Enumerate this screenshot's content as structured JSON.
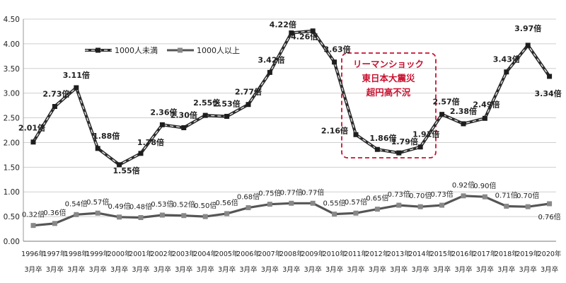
{
  "chart_data": {
    "type": "line",
    "title": "",
    "xlabel": "",
    "ylabel": "",
    "ylim": [
      0,
      4.5
    ],
    "yticks": [
      "0.00",
      "0.50",
      "1.00",
      "1.50",
      "2.00",
      "2.50",
      "3.00",
      "3.50",
      "4.00",
      "4.50"
    ],
    "grid": true,
    "legend_position": "top-left",
    "categories_year": [
      "1996年",
      "1997年",
      "1998年",
      "1999年",
      "2000年",
      "2001年",
      "2002年",
      "2003年",
      "2004年",
      "2005年",
      "2006年",
      "2007年",
      "2008年",
      "2009年",
      "2010年",
      "2011年",
      "2012年",
      "2013年",
      "2014年",
      "2015年",
      "2016年",
      "2017年",
      "2018年",
      "2019年",
      "2020年"
    ],
    "categories_month": "3月卒",
    "series": [
      {
        "name": "1000人未満",
        "style": "dashed-thick",
        "color": "#2b2b2b",
        "values": [
          2.01,
          2.73,
          3.11,
          1.88,
          1.55,
          1.78,
          2.36,
          2.3,
          2.55,
          2.53,
          2.77,
          3.42,
          4.22,
          4.26,
          3.63,
          2.16,
          1.86,
          1.79,
          1.91,
          2.57,
          2.38,
          2.49,
          3.43,
          3.97,
          3.34
        ],
        "labels": [
          "2.01倍",
          "2.73倍",
          "3.11倍",
          "1.88倍",
          "1.55倍",
          "1.78倍",
          "2.36倍",
          "2.30倍",
          "2.55倍",
          "2.53倍",
          "2.77倍",
          "3.42倍",
          "4.22倍",
          "4.26倍",
          "3.63倍",
          "2.16倍",
          "1.86倍",
          "1.79倍",
          "1.91倍",
          "2.57倍",
          "2.38倍",
          "2.49倍",
          "3.43倍",
          "3.97倍",
          "3.34倍"
        ]
      },
      {
        "name": "1000人以上",
        "style": "solid",
        "color": "#555555",
        "values": [
          0.32,
          0.36,
          0.54,
          0.57,
          0.49,
          0.48,
          0.53,
          0.52,
          0.5,
          0.56,
          0.68,
          0.75,
          0.77,
          0.77,
          0.55,
          0.57,
          0.65,
          0.73,
          0.7,
          0.73,
          0.92,
          0.9,
          0.71,
          0.7,
          0.76
        ],
        "labels": [
          "0.32倍",
          "0.36倍",
          "0.54倍",
          "0.57倍",
          "0.49倍",
          "0.48倍",
          "0.53倍",
          "0.52倍",
          "0.50倍",
          "0.56倍",
          "0.68倍",
          "0.75倍",
          "0.77倍",
          "0.77倍",
          "0.55倍",
          "0.57倍",
          "0.65倍",
          "0.73倍",
          "0.70倍",
          "0.73倍",
          "0.92倍",
          "0.90倍",
          "0.71倍",
          "0.70倍",
          "0.76倍"
        ]
      }
    ],
    "annotation": {
      "lines": [
        "リーマンショック",
        "東日本大震災",
        "超円高不況"
      ],
      "color": "#c8102e"
    }
  }
}
